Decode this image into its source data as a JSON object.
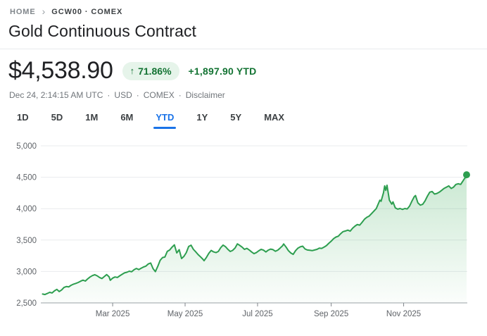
{
  "breadcrumb": {
    "home": "HOME",
    "separator": "›",
    "current": "GCW00 · COMEX"
  },
  "header": {
    "title": "Gold Continuous Contract"
  },
  "quote": {
    "price": "$4,538.90",
    "change_arrow": "↑",
    "change_percent": "71.86%",
    "change_abs": "+1,897.90 YTD",
    "timestamp": "Dec 24, 2:14:15 AM UTC",
    "currency": "USD",
    "exchange": "COMEX",
    "disclaimer": "Disclaimer",
    "meta_separator": "·"
  },
  "range_tabs": {
    "items": [
      {
        "label": "1D",
        "selected": false
      },
      {
        "label": "5D",
        "selected": false
      },
      {
        "label": "1M",
        "selected": false
      },
      {
        "label": "6M",
        "selected": false
      },
      {
        "label": "YTD",
        "selected": true
      },
      {
        "label": "1Y",
        "selected": false
      },
      {
        "label": "5Y",
        "selected": false
      },
      {
        "label": "MAX",
        "selected": false
      }
    ]
  },
  "colors": {
    "accent_blue": "#1a73e8",
    "text_green": "#137333",
    "badge_bg": "#e6f4ea",
    "line_green": "#2d9e4f",
    "fill_top": "rgba(52,168,83,0.26)",
    "fill_bottom": "rgba(52,168,83,0.02)",
    "gridline": "#e9ebee",
    "axis_line": "#9aa0a6",
    "tick_mark": "#80868b",
    "axis_text": "#5f6368"
  },
  "chart_data": {
    "type": "area",
    "title": "Gold Continuous Contract price, YTD 2025",
    "x_unit": "day_of_year_2025",
    "x_range": [
      0,
      357
    ],
    "ylim": [
      2500,
      5000
    ],
    "grid": true,
    "legend": "none",
    "y_ticks": [
      2500,
      3000,
      3500,
      4000,
      4500,
      5000
    ],
    "y_tick_labels": [
      "2,500",
      "3,000",
      "3,500",
      "4,000",
      "4,500",
      "5,000"
    ],
    "x_ticks": [
      {
        "day": 59,
        "label": "Mar 2025"
      },
      {
        "day": 120,
        "label": "May 2025"
      },
      {
        "day": 181,
        "label": "Jul 2025"
      },
      {
        "day": 243,
        "label": "Sep 2025"
      },
      {
        "day": 304,
        "label": "Nov 2025"
      }
    ],
    "end_dot": true,
    "last_price": 4538.9,
    "series": [
      {
        "name": "GCW00",
        "points": [
          [
            0,
            2641
          ],
          [
            2,
            2633
          ],
          [
            4,
            2650
          ],
          [
            6,
            2668
          ],
          [
            8,
            2658
          ],
          [
            10,
            2692
          ],
          [
            12,
            2715
          ],
          [
            14,
            2680
          ],
          [
            16,
            2705
          ],
          [
            18,
            2745
          ],
          [
            20,
            2760
          ],
          [
            22,
            2755
          ],
          [
            24,
            2780
          ],
          [
            26,
            2798
          ],
          [
            28,
            2810
          ],
          [
            30,
            2825
          ],
          [
            32,
            2845
          ],
          [
            34,
            2862
          ],
          [
            36,
            2848
          ],
          [
            38,
            2882
          ],
          [
            40,
            2912
          ],
          [
            42,
            2935
          ],
          [
            44,
            2948
          ],
          [
            46,
            2930
          ],
          [
            48,
            2905
          ],
          [
            50,
            2888
          ],
          [
            52,
            2920
          ],
          [
            54,
            2951
          ],
          [
            56,
            2915
          ],
          [
            57,
            2860
          ],
          [
            59,
            2895
          ],
          [
            61,
            2912
          ],
          [
            63,
            2905
          ],
          [
            65,
            2932
          ],
          [
            67,
            2955
          ],
          [
            69,
            2978
          ],
          [
            71,
            2988
          ],
          [
            73,
            3005
          ],
          [
            75,
            2995
          ],
          [
            77,
            3028
          ],
          [
            79,
            3048
          ],
          [
            81,
            3030
          ],
          [
            83,
            3052
          ],
          [
            85,
            3072
          ],
          [
            87,
            3085
          ],
          [
            89,
            3120
          ],
          [
            91,
            3135
          ],
          [
            93,
            3045
          ],
          [
            95,
            2998
          ],
          [
            97,
            3082
          ],
          [
            99,
            3178
          ],
          [
            101,
            3222
          ],
          [
            103,
            3230
          ],
          [
            105,
            3320
          ],
          [
            107,
            3342
          ],
          [
            109,
            3388
          ],
          [
            111,
            3424
          ],
          [
            113,
            3295
          ],
          [
            115,
            3348
          ],
          [
            117,
            3206
          ],
          [
            119,
            3240
          ],
          [
            121,
            3300
          ],
          [
            123,
            3398
          ],
          [
            125,
            3418
          ],
          [
            127,
            3352
          ],
          [
            129,
            3312
          ],
          [
            131,
            3268
          ],
          [
            133,
            3232
          ],
          [
            135,
            3195
          ],
          [
            136,
            3172
          ],
          [
            138,
            3225
          ],
          [
            140,
            3290
          ],
          [
            142,
            3335
          ],
          [
            144,
            3312
          ],
          [
            146,
            3300
          ],
          [
            148,
            3320
          ],
          [
            150,
            3380
          ],
          [
            152,
            3420
          ],
          [
            154,
            3395
          ],
          [
            156,
            3352
          ],
          [
            158,
            3318
          ],
          [
            160,
            3335
          ],
          [
            162,
            3372
          ],
          [
            164,
            3440
          ],
          [
            166,
            3415
          ],
          [
            168,
            3388
          ],
          [
            170,
            3352
          ],
          [
            172,
            3368
          ],
          [
            174,
            3342
          ],
          [
            176,
            3310
          ],
          [
            178,
            3284
          ],
          [
            180,
            3300
          ],
          [
            182,
            3330
          ],
          [
            184,
            3352
          ],
          [
            186,
            3340
          ],
          [
            188,
            3310
          ],
          [
            190,
            3340
          ],
          [
            192,
            3356
          ],
          [
            194,
            3348
          ],
          [
            196,
            3322
          ],
          [
            198,
            3340
          ],
          [
            200,
            3372
          ],
          [
            202,
            3408
          ],
          [
            203,
            3438
          ],
          [
            205,
            3388
          ],
          [
            207,
            3332
          ],
          [
            209,
            3295
          ],
          [
            211,
            3272
          ],
          [
            213,
            3332
          ],
          [
            215,
            3372
          ],
          [
            217,
            3392
          ],
          [
            219,
            3402
          ],
          [
            221,
            3358
          ],
          [
            223,
            3342
          ],
          [
            225,
            3338
          ],
          [
            227,
            3332
          ],
          [
            229,
            3342
          ],
          [
            231,
            3352
          ],
          [
            233,
            3372
          ],
          [
            235,
            3368
          ],
          [
            237,
            3388
          ],
          [
            239,
            3412
          ],
          [
            241,
            3448
          ],
          [
            243,
            3482
          ],
          [
            245,
            3522
          ],
          [
            247,
            3548
          ],
          [
            249,
            3562
          ],
          [
            251,
            3602
          ],
          [
            253,
            3635
          ],
          [
            255,
            3645
          ],
          [
            257,
            3658
          ],
          [
            259,
            3642
          ],
          [
            261,
            3688
          ],
          [
            263,
            3722
          ],
          [
            265,
            3748
          ],
          [
            267,
            3738
          ],
          [
            269,
            3782
          ],
          [
            271,
            3832
          ],
          [
            273,
            3862
          ],
          [
            275,
            3882
          ],
          [
            277,
            3922
          ],
          [
            279,
            3962
          ],
          [
            281,
            4002
          ],
          [
            283,
            4092
          ],
          [
            284,
            4135
          ],
          [
            285,
            4118
          ],
          [
            287,
            4252
          ],
          [
            288,
            4362
          ],
          [
            289,
            4292
          ],
          [
            290,
            4372
          ],
          [
            292,
            4135
          ],
          [
            294,
            4072
          ],
          [
            295,
            4108
          ],
          [
            297,
            4012
          ],
          [
            299,
            3992
          ],
          [
            301,
            4002
          ],
          [
            303,
            3988
          ],
          [
            305,
            4002
          ],
          [
            307,
            3996
          ],
          [
            309,
            4042
          ],
          [
            311,
            4122
          ],
          [
            313,
            4192
          ],
          [
            314,
            4208
          ],
          [
            316,
            4092
          ],
          [
            318,
            4056
          ],
          [
            320,
            4068
          ],
          [
            322,
            4122
          ],
          [
            324,
            4198
          ],
          [
            326,
            4262
          ],
          [
            328,
            4272
          ],
          [
            330,
            4232
          ],
          [
            332,
            4242
          ],
          [
            334,
            4262
          ],
          [
            336,
            4292
          ],
          [
            338,
            4322
          ],
          [
            340,
            4342
          ],
          [
            342,
            4362
          ],
          [
            344,
            4322
          ],
          [
            346,
            4342
          ],
          [
            348,
            4386
          ],
          [
            350,
            4396
          ],
          [
            352,
            4386
          ],
          [
            354,
            4442
          ],
          [
            355,
            4472
          ],
          [
            356,
            4496
          ],
          [
            357,
            4539
          ]
        ]
      }
    ]
  }
}
